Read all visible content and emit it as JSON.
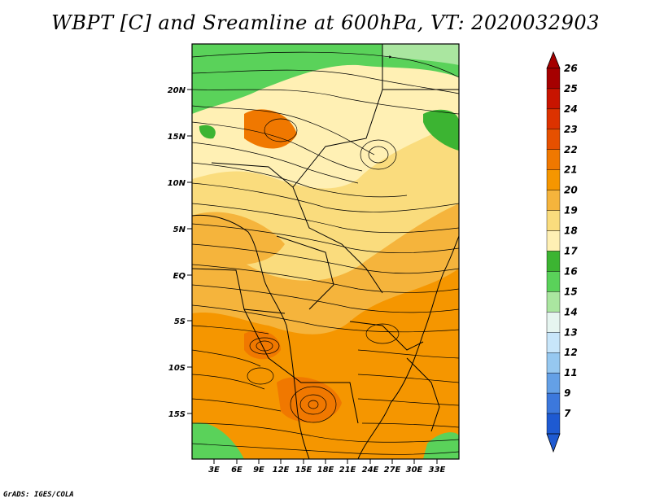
{
  "title": "WBPT [C] and Sreamline at 600hPa, VT: 2020032903",
  "credit": "GrADS: IGES/COLA",
  "map": {
    "lon_range": [
      0,
      36
    ],
    "lat_range": [
      -20,
      25
    ],
    "lon_ticks": [
      "3E",
      "6E",
      "9E",
      "12E",
      "15E",
      "18E",
      "21E",
      "24E",
      "27E",
      "30E",
      "33E"
    ],
    "lat_ticks": [
      "20N",
      "15N",
      "10N",
      "5N",
      "EQ",
      "5S",
      "10S",
      "15S"
    ]
  },
  "colorbar": {
    "levels": [
      "26",
      "25",
      "24",
      "23",
      "22",
      "21",
      "20",
      "19",
      "18",
      "17",
      "16",
      "15",
      "14",
      "13",
      "12",
      "11",
      "9",
      "7"
    ],
    "colors": [
      "#a50000",
      "#c81400",
      "#dc3200",
      "#e65000",
      "#f07800",
      "#f59600",
      "#f5b43c",
      "#fadc7d",
      "#fff0b4",
      "#3cb432",
      "#5ad25a",
      "#aae6a0",
      "#e6f5f0",
      "#c8e6fa",
      "#96c8f0",
      "#64a0e6",
      "#3c78dc",
      "#1e5ad2"
    ]
  }
}
